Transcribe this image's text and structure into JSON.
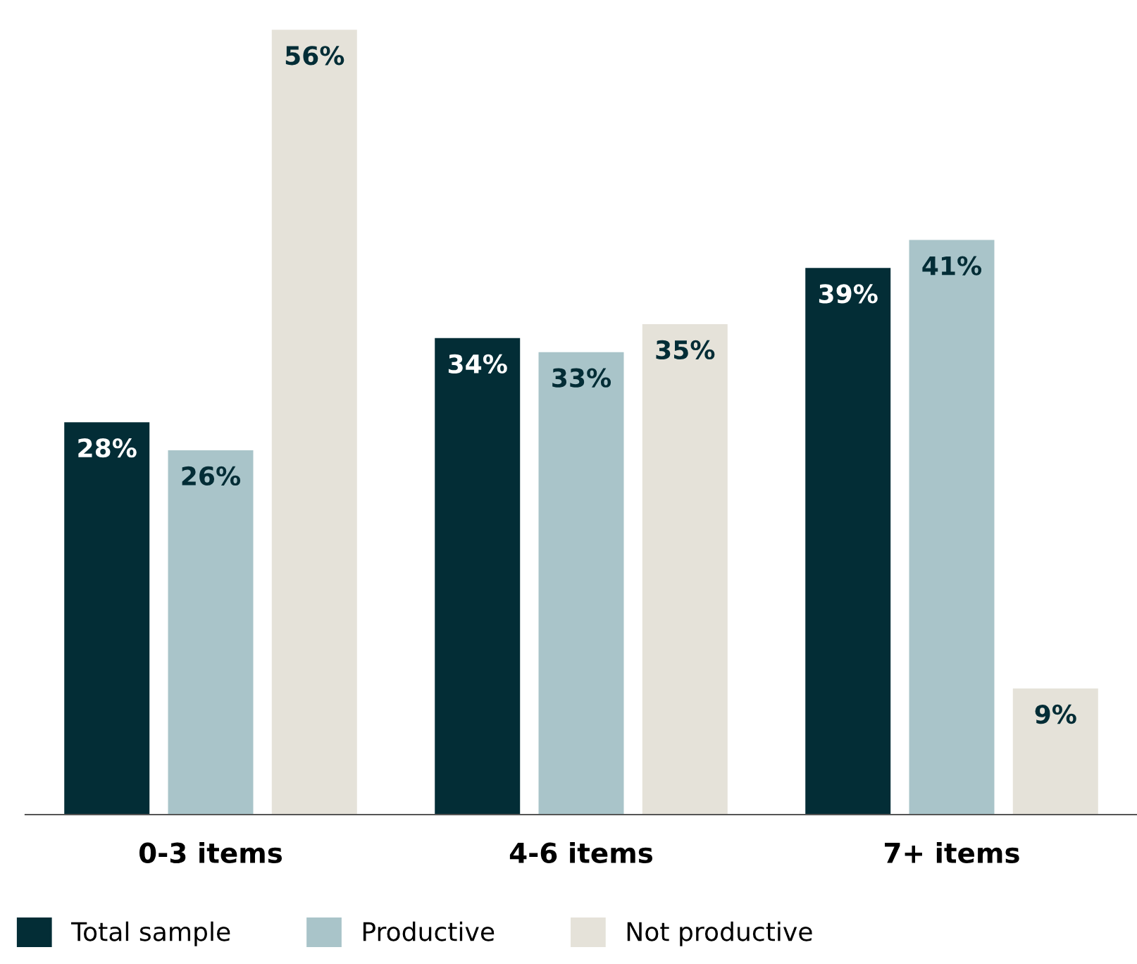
{
  "chart_data": {
    "type": "bar",
    "categories": [
      "0-3 items",
      "4-6 items",
      "7+ items"
    ],
    "series": [
      {
        "name": "Total sample",
        "color": "#032d36",
        "values": [
          28,
          34,
          39
        ],
        "value_labels": [
          "28%",
          "34%",
          "39%"
        ]
      },
      {
        "name": "Productive",
        "color": "#a9c4c9",
        "values": [
          26,
          33,
          41
        ],
        "value_labels": [
          "26%",
          "33%",
          "41%"
        ]
      },
      {
        "name": "Not productive",
        "color": "#e5e2d9",
        "values": [
          56,
          35,
          9
        ],
        "value_labels": [
          "56%",
          "35%",
          "9%"
        ]
      }
    ],
    "legend": "bottom",
    "grid": false
  }
}
